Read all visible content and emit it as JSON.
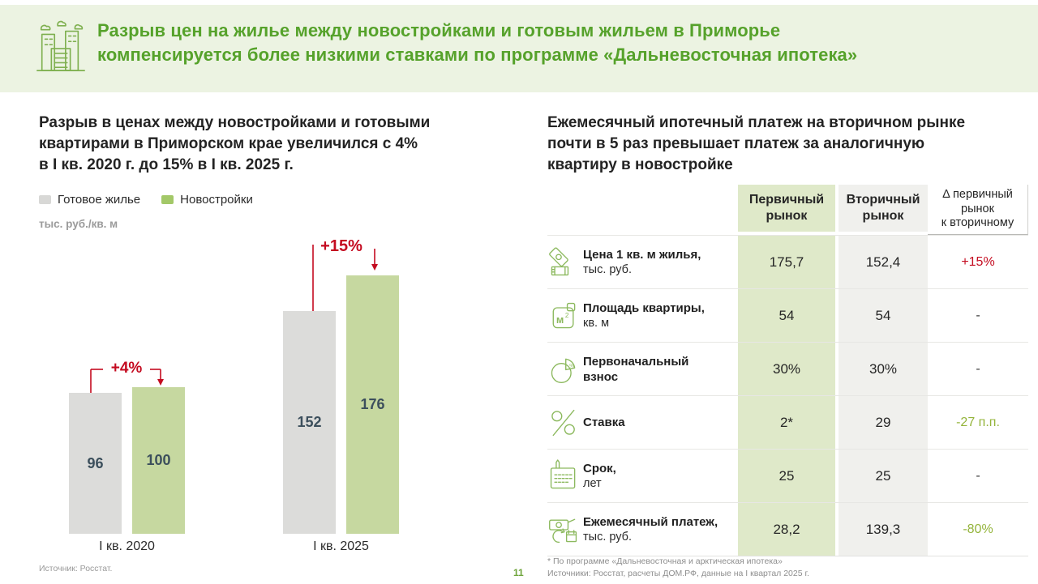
{
  "page": {
    "header": {
      "icon": "city-buildings-icon",
      "title_line1": "Разрыв цен на жилье между новостройками и готовым жильем в Приморье",
      "title_line2": "компенсируется более низкими ставками по программе «Дальневосточная ипотека»"
    },
    "left_panel": {
      "title_lines": [
        "Разрыв в ценах между новостройками и готовыми",
        "квартирами в Приморском крае увеличился с 4%",
        "в I кв. 2020 г. до 15% в I кв. 2025 г."
      ]
    },
    "right_panel": {
      "title_lines": [
        "Ежемесячный ипотечный платеж на вторичном рынке",
        "почти в 5 раз превышает платеж за аналогичную",
        "квартиру в новостройке"
      ],
      "table": {
        "columns": [
          "Первичный рынок",
          "Вторичный рынок"
        ],
        "delta_column_lines": [
          "Δ первичный",
          "рынок",
          "к вторичному"
        ],
        "rows": [
          {
            "icon": "banknotes-icon",
            "label": "Цена 1 кв. м жилья,",
            "sublabel": "тыс. руб.",
            "primary": "175,7",
            "secondary": "152,4",
            "delta": "+15%",
            "delta_style": "red"
          },
          {
            "icon": "area-m2-icon",
            "label": "Площадь квартиры,",
            "sublabel": "кв. м",
            "primary": "54",
            "secondary": "54",
            "delta": "-",
            "delta_style": "plain"
          },
          {
            "icon": "pie-chart-icon",
            "label": "Первоначальный\nвзнос",
            "sublabel": "",
            "primary": "30%",
            "secondary": "30%",
            "delta": "-",
            "delta_style": "plain"
          },
          {
            "icon": "percent-icon",
            "label": "Ставка",
            "sublabel": "",
            "primary": "2*",
            "secondary": "29",
            "delta": "-27 п.п.",
            "delta_style": "green"
          },
          {
            "icon": "calendar-pencil-icon",
            "label": "Срок,",
            "sublabel": "лет",
            "primary": "25",
            "secondary": "25",
            "delta": "-",
            "delta_style": "plain"
          },
          {
            "icon": "payment-calendar-icon",
            "label": "Ежемесячный платеж,",
            "sublabel": "тыс. руб.",
            "primary": "28,2",
            "secondary": "139,3",
            "delta": "-80%",
            "delta_style": "green"
          }
        ]
      },
      "footnotes": [
        "* По программе «Дальневосточная и арктическая ипотека»",
        "Источники: Росстат, расчеты ДОМ.РФ, данные на I квартал 2025 г."
      ]
    },
    "page_number": "11",
    "colors": {
      "header_band": "#ecf3e2",
      "brand_green": "#56a22b",
      "accent_red": "#c40b20",
      "delta_green": "#94b43b",
      "table_primary_bg": "#dfe9c9",
      "table_secondary_bg": "#f0f0ed"
    }
  },
  "chart_data": {
    "type": "bar",
    "title": "Разрыв в ценах между новостройками и готовыми квартирами в Приморском крае увеличился с 4% в I кв. 2020 г. до 15% в I кв. 2025 г.",
    "unit": "тыс. руб./кв. м",
    "categories": [
      "I кв. 2020",
      "I кв. 2025"
    ],
    "series": [
      {
        "name": "Готовое жилье",
        "color": "#dcdcda",
        "legend_color": "#d8d8d6",
        "values": [
          96,
          152
        ]
      },
      {
        "name": "Новостройки",
        "color": "#c6d8a0",
        "legend_color": "#a3c868",
        "values": [
          100,
          176
        ]
      }
    ],
    "annotations": [
      {
        "label": "+4%",
        "category": "I кв. 2020"
      },
      {
        "label": "+15%",
        "category": "I кв. 2025"
      }
    ],
    "ylim": [
      0,
      190
    ],
    "grid": false,
    "legend_position": "top-left",
    "source": "Источник: Росстат."
  }
}
